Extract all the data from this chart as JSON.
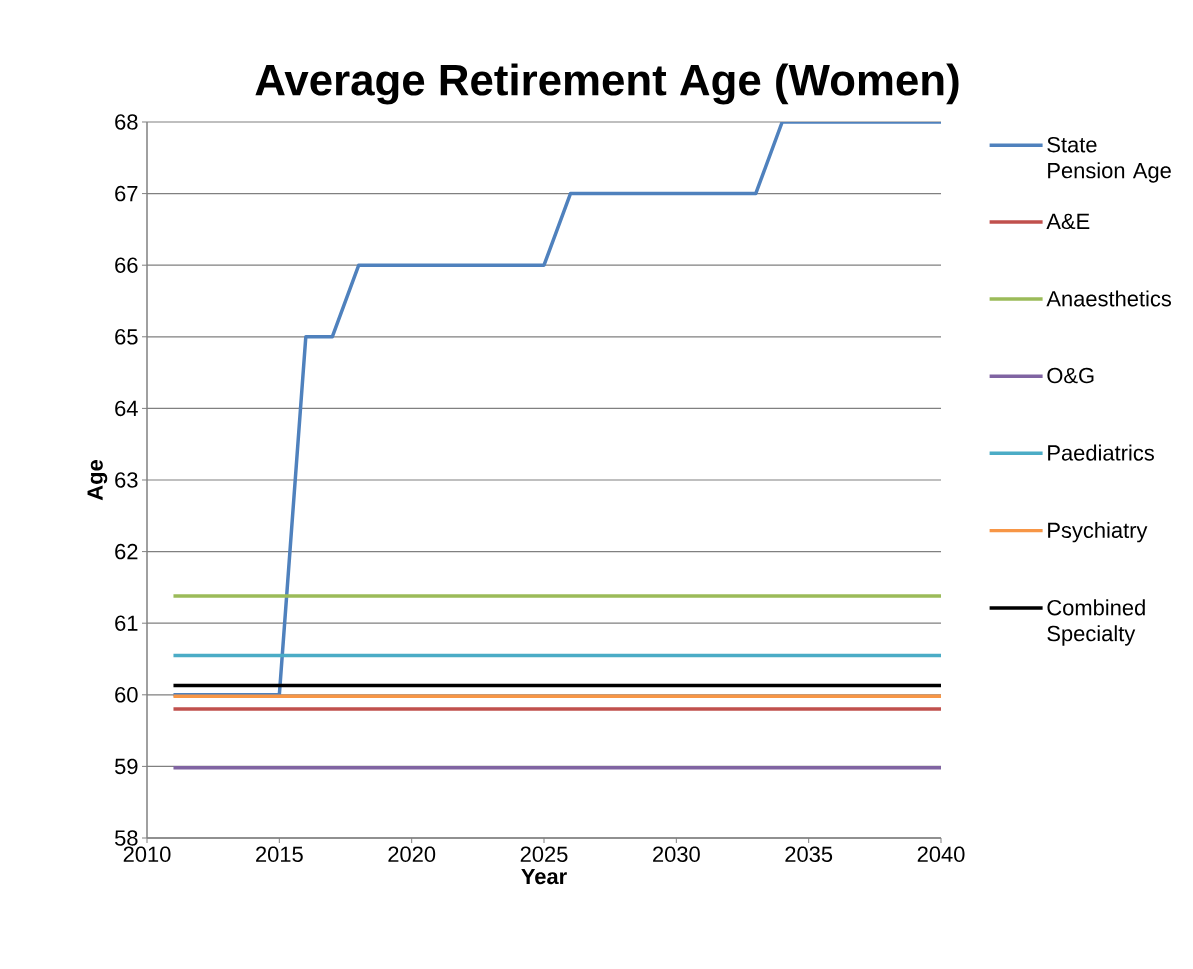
{
  "chart_data": {
    "type": "line",
    "title": "Average Retirement Age (Women)",
    "xlabel": "Year",
    "ylabel": "Age",
    "xlim": [
      2010,
      2040
    ],
    "xticks": [
      2010,
      2015,
      2020,
      2025,
      2030,
      2035,
      2040
    ],
    "ylim": [
      58,
      68
    ],
    "yticks": [
      58,
      59,
      60,
      61,
      62,
      63,
      64,
      65,
      66,
      67,
      68
    ],
    "grid": "y",
    "legend": "right",
    "series": [
      {
        "name": "State Pension Age",
        "color": "#4f81bd",
        "x": [
          2011,
          2015,
          2016,
          2017,
          2018,
          2025,
          2026,
          2033,
          2034,
          2040
        ],
        "values": [
          60,
          60,
          65,
          65,
          66,
          66,
          67,
          67,
          68,
          68
        ]
      },
      {
        "name": "A&E",
        "color": "#c0504d",
        "x": [
          2011,
          2040
        ],
        "values": [
          59.8,
          59.8
        ]
      },
      {
        "name": "Anaesthetics",
        "color": "#9bbb59",
        "x": [
          2011,
          2040
        ],
        "values": [
          61.38,
          61.38
        ]
      },
      {
        "name": "O&G",
        "color": "#8064a2",
        "x": [
          2011,
          2040
        ],
        "values": [
          58.98,
          58.98
        ]
      },
      {
        "name": "Paediatrics",
        "color": "#4bacc6",
        "x": [
          2011,
          2040
        ],
        "values": [
          60.55,
          60.55
        ]
      },
      {
        "name": "Psychiatry",
        "color": "#f79646",
        "x": [
          2011,
          2040
        ],
        "values": [
          59.98,
          59.98
        ]
      },
      {
        "name": "Combined Specialty",
        "color": "#000000",
        "x": [
          2011,
          2040
        ],
        "values": [
          60.13,
          60.13
        ]
      }
    ]
  }
}
